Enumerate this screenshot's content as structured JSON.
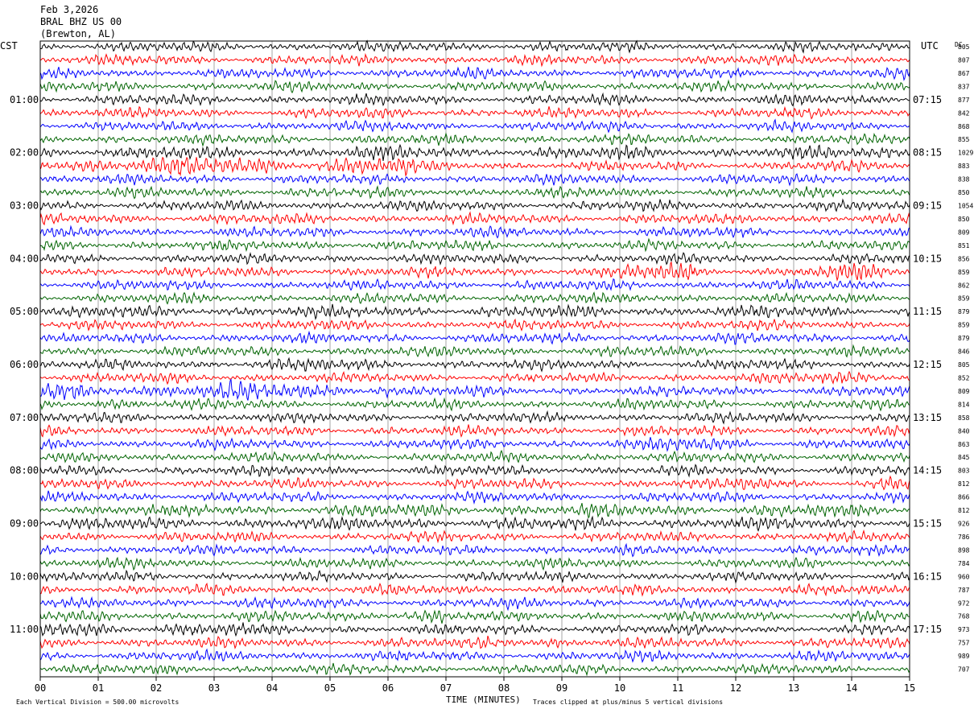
{
  "header": {
    "date": "Feb 3,2026",
    "station": "BRAL BHZ US 00",
    "location": "(Brewton, AL)"
  },
  "left_timezone": "CST",
  "right_timezone": "UTC",
  "dc_label": "DC",
  "footer": {
    "scale_note": "Each Vertical Division =  500.00 microvolts",
    "xlabel": "TIME (MINUTES)",
    "clip_note": "Traces clipped at plus/minus 5 vertical divisions"
  },
  "colors": {
    "trace_cycle": [
      "#000000",
      "#ff0000",
      "#0000ff",
      "#006400"
    ],
    "grid": "#808080"
  },
  "chart_data": {
    "type": "line",
    "title": "",
    "xlabel": "TIME (MINUTES)",
    "x_ticks": [
      "00",
      "01",
      "02",
      "03",
      "04",
      "05",
      "06",
      "07",
      "08",
      "09",
      "10",
      "11",
      "12",
      "13",
      "14",
      "15"
    ],
    "xlim": [
      0,
      15
    ],
    "row_count": 48,
    "rows_per_hour": 4,
    "left_hour_labels": [
      "01:00",
      "02:00",
      "03:00",
      "04:00",
      "05:00",
      "06:00",
      "07:00",
      "08:00",
      "09:00",
      "10:00",
      "11:00"
    ],
    "right_hour_labels": [
      "07:15",
      "08:15",
      "09:15",
      "10:15",
      "11:15",
      "12:15",
      "13:15",
      "14:15",
      "15:15",
      "16:15",
      "17:15"
    ],
    "dc_offsets": [
      805,
      807,
      867,
      837,
      877,
      842,
      868,
      855,
      1029,
      883,
      838,
      850,
      1054,
      850,
      809,
      851,
      856,
      859,
      862,
      859,
      879,
      859,
      879,
      846,
      805,
      852,
      809,
      814,
      858,
      840,
      863,
      845,
      803,
      812,
      866,
      812,
      926,
      786,
      898,
      784,
      960,
      787,
      972,
      768,
      973,
      757,
      989,
      707
    ],
    "bursts": [
      {
        "row": 9,
        "from": 0,
        "to": 6.5,
        "amp": 1.9
      },
      {
        "row": 8,
        "from": 0,
        "to": 15,
        "amp": 1.3
      },
      {
        "row": 17,
        "from": 10,
        "to": 11.3,
        "amp": 1.8
      },
      {
        "row": 17,
        "from": 13,
        "to": 14.6,
        "amp": 1.6
      },
      {
        "row": 20,
        "from": 0,
        "to": 15,
        "amp": 1.2
      },
      {
        "row": 24,
        "from": 3.5,
        "to": 5,
        "amp": 1.4
      },
      {
        "row": 25,
        "from": 13.5,
        "to": 15,
        "amp": 1.6
      },
      {
        "row": 26,
        "from": 0,
        "to": 6,
        "amp": 1.8
      },
      {
        "row": 27,
        "from": 1,
        "to": 1.8,
        "amp": 1.6
      },
      {
        "row": 30,
        "from": 10.5,
        "to": 12.3,
        "amp": 1.5
      },
      {
        "row": 33,
        "from": 12,
        "to": 12.6,
        "amp": 1.6
      },
      {
        "row": 33,
        "from": 14.5,
        "to": 15,
        "amp": 1.6
      },
      {
        "row": 35,
        "from": 0,
        "to": 15,
        "amp": 1.3
      },
      {
        "row": 36,
        "from": 0,
        "to": 15,
        "amp": 1.3
      },
      {
        "row": 43,
        "from": 5.5,
        "to": 7,
        "amp": 1.6
      },
      {
        "row": 43,
        "from": 14,
        "to": 14.6,
        "amp": 1.6
      },
      {
        "row": 44,
        "from": 0,
        "to": 3.5,
        "amp": 1.5
      },
      {
        "row": 45,
        "from": 7.5,
        "to": 9,
        "amp": 1.5
      }
    ]
  }
}
